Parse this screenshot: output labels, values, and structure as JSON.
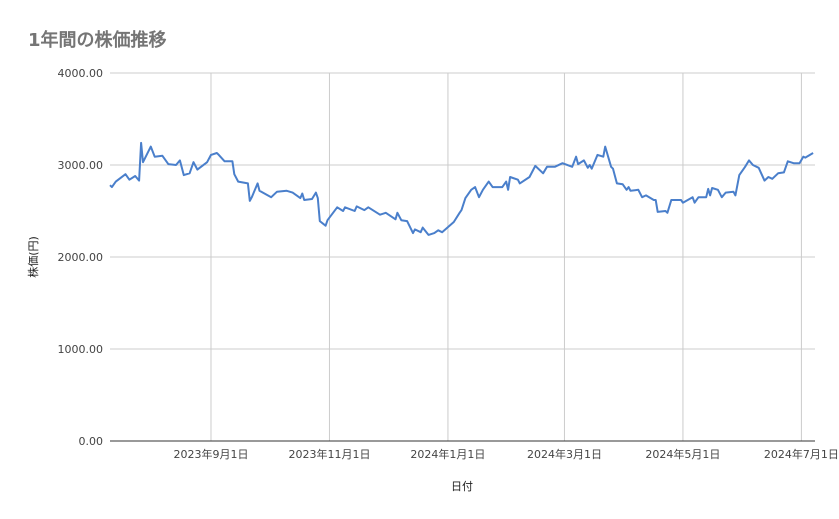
{
  "chart_data": {
    "type": "line",
    "title": "1年間の株価推移",
    "xlabel": "日付",
    "ylabel": "株価(円)",
    "ylim": [
      0,
      4000
    ],
    "xlim": [
      "2023-07-11",
      "2024-07-08"
    ],
    "grid": true,
    "legend": "none",
    "line_color": "#4a7fcb",
    "yticks": [
      "0.00",
      "1000.00",
      "2000.00",
      "3000.00",
      "4000.00"
    ],
    "ytick_values": [
      0,
      1000,
      2000,
      3000,
      4000
    ],
    "xticks": [
      {
        "date": "2023-09-01",
        "label": "2023年9月1日"
      },
      {
        "date": "2023-11-01",
        "label": "2023年11月1日"
      },
      {
        "date": "2024-01-01",
        "label": "2024年1月1日"
      },
      {
        "date": "2024-03-01",
        "label": "2024年3月1日"
      },
      {
        "date": "2024-05-01",
        "label": "2024年5月1日"
      },
      {
        "date": "2024-07-01",
        "label": "2024年7月1日"
      }
    ],
    "series": [
      {
        "x": [
          "2023-07-11",
          "2023-07-12",
          "2023-07-14",
          "2023-07-19",
          "2023-07-21",
          "2023-07-24",
          "2023-07-26",
          "2023-07-27",
          "2023-07-28",
          "2023-08-01",
          "2023-08-03",
          "2023-08-07",
          "2023-08-10",
          "2023-08-14",
          "2023-08-16",
          "2023-08-18",
          "2023-08-21",
          "2023-08-23",
          "2023-08-25",
          "2023-08-30",
          "2023-09-01",
          "2023-09-04",
          "2023-09-05",
          "2023-09-08",
          "2023-09-12",
          "2023-09-13",
          "2023-09-15",
          "2023-09-20",
          "2023-09-21",
          "2023-09-22",
          "2023-09-25",
          "2023-09-26",
          "2023-10-02",
          "2023-10-05",
          "2023-10-10",
          "2023-10-13",
          "2023-10-17",
          "2023-10-18",
          "2023-10-19",
          "2023-10-23",
          "2023-10-25",
          "2023-10-26",
          "2023-10-27",
          "2023-10-30",
          "2023-10-31",
          "2023-11-05",
          "2023-11-08",
          "2023-11-09",
          "2023-11-14",
          "2023-11-15",
          "2023-11-19",
          "2023-11-21",
          "2023-11-27",
          "2023-11-30",
          "2023-12-05",
          "2023-12-06",
          "2023-12-08",
          "2023-12-11",
          "2023-12-14",
          "2023-12-15",
          "2023-12-18",
          "2023-12-19",
          "2023-12-22",
          "2023-12-25",
          "2023-12-27",
          "2023-12-29",
          "2024-01-04",
          "2024-01-07",
          "2024-01-08",
          "2024-01-10",
          "2024-01-13",
          "2024-01-15",
          "2024-01-17",
          "2024-01-19",
          "2024-01-22",
          "2024-01-24",
          "2024-01-29",
          "2024-01-31",
          "2024-02-01",
          "2024-02-02",
          "2024-02-06",
          "2024-02-07",
          "2024-02-12",
          "2024-02-15",
          "2024-02-19",
          "2024-02-21",
          "2024-02-25",
          "2024-02-29",
          "2024-03-05",
          "2024-03-07",
          "2024-03-08",
          "2024-03-11",
          "2024-03-13",
          "2024-03-14",
          "2024-03-15",
          "2024-03-18",
          "2024-03-21",
          "2024-03-22",
          "2024-03-25",
          "2024-03-26",
          "2024-03-28",
          "2024-03-31",
          "2024-04-02",
          "2024-04-03",
          "2024-04-04",
          "2024-04-08",
          "2024-04-10",
          "2024-04-12",
          "2024-04-16",
          "2024-04-17",
          "2024-04-18",
          "2024-04-22",
          "2024-04-23",
          "2024-04-25",
          "2024-04-30",
          "2024-05-01",
          "2024-05-06",
          "2024-05-07",
          "2024-05-09",
          "2024-05-13",
          "2024-05-14",
          "2024-05-15",
          "2024-05-16",
          "2024-05-19",
          "2024-05-21",
          "2024-05-23",
          "2024-05-27",
          "2024-05-28",
          "2024-05-30",
          "2024-06-02",
          "2024-06-04",
          "2024-06-06",
          "2024-06-09",
          "2024-06-12",
          "2024-06-14",
          "2024-06-16",
          "2024-06-19",
          "2024-06-22",
          "2024-06-24",
          "2024-06-27",
          "2024-06-30",
          "2024-07-02",
          "2024-07-03",
          "2024-07-07"
        ],
        "y": [
          2780,
          2760,
          2820,
          2900,
          2840,
          2880,
          2830,
          3240,
          3030,
          3200,
          3090,
          3100,
          3010,
          3000,
          3050,
          2890,
          2910,
          3030,
          2950,
          3030,
          3110,
          3130,
          3110,
          3040,
          3040,
          2900,
          2820,
          2800,
          2610,
          2650,
          2800,
          2720,
          2650,
          2710,
          2720,
          2700,
          2640,
          2690,
          2620,
          2630,
          2700,
          2640,
          2390,
          2340,
          2400,
          2540,
          2500,
          2540,
          2500,
          2550,
          2510,
          2540,
          2460,
          2480,
          2410,
          2480,
          2400,
          2390,
          2260,
          2300,
          2270,
          2320,
          2240,
          2260,
          2290,
          2270,
          2380,
          2480,
          2510,
          2640,
          2730,
          2760,
          2650,
          2730,
          2820,
          2760,
          2760,
          2820,
          2730,
          2870,
          2840,
          2800,
          2870,
          2990,
          2910,
          2980,
          2980,
          3020,
          2980,
          3090,
          3010,
          3050,
          2970,
          3000,
          2960,
          3110,
          3090,
          3200,
          2980,
          2960,
          2800,
          2790,
          2730,
          2760,
          2720,
          2730,
          2650,
          2670,
          2620,
          2620,
          2490,
          2500,
          2480,
          2620,
          2620,
          2590,
          2650,
          2590,
          2650,
          2650,
          2740,
          2670,
          2750,
          2730,
          2650,
          2700,
          2710,
          2670,
          2890,
          2980,
          3050,
          3000,
          2970,
          2830,
          2870,
          2850,
          2910,
          2920,
          3040,
          3020,
          3020,
          3090,
          3080,
          3130
        ]
      }
    ]
  }
}
